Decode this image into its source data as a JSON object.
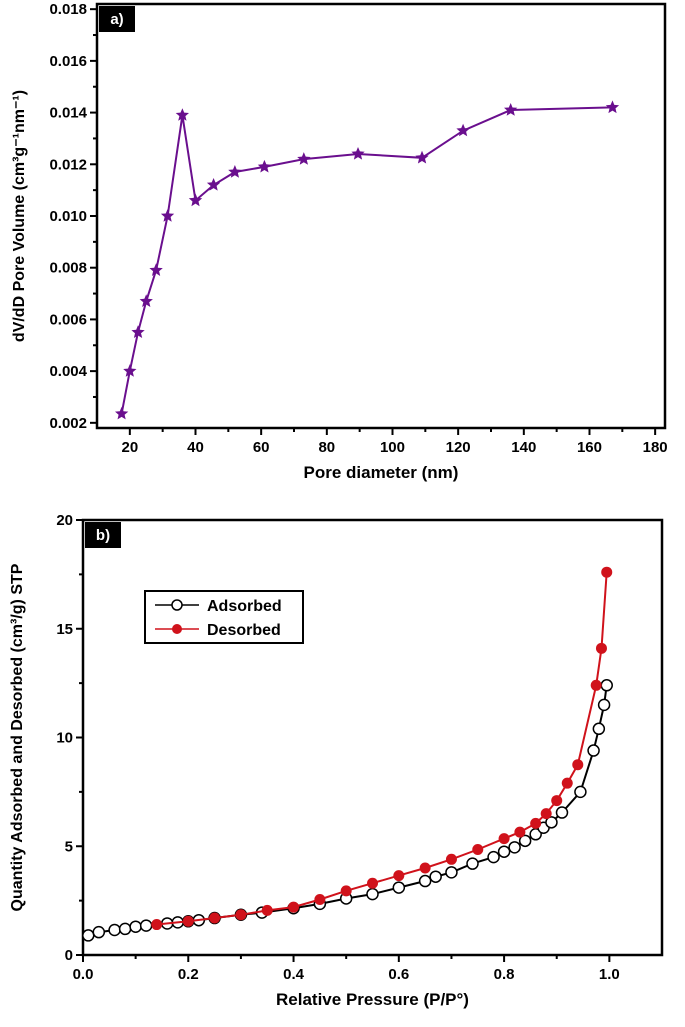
{
  "chart_data": [
    {
      "type": "line",
      "panel_label": "a)",
      "xlabel": "Pore diameter (nm)",
      "ylabel": "dV/dD Pore Volume (cm³g⁻¹nm⁻¹)",
      "xlim": [
        10,
        183
      ],
      "ylim": [
        0.0018,
        0.0182
      ],
      "xticks": [
        20,
        40,
        60,
        80,
        100,
        120,
        140,
        160,
        180
      ],
      "yticks": [
        "0.002",
        "0.004",
        "0.006",
        "0.008",
        "0.010",
        "0.012",
        "0.014",
        "0.016",
        "0.018"
      ],
      "grid": false,
      "series": [
        {
          "color": "#6a0f8e",
          "marker": "star",
          "x": [
            17.5,
            20,
            22.5,
            25,
            28,
            31.5,
            36,
            40,
            45.5,
            52,
            61,
            73,
            89.5,
            109,
            121.5,
            136,
            167
          ],
          "y": [
            0.00235,
            0.004,
            0.0055,
            0.0067,
            0.0079,
            0.01,
            0.0139,
            0.0106,
            0.0112,
            0.0117,
            0.0119,
            0.0122,
            0.0124,
            0.01225,
            0.0133,
            0.0141,
            0.0142
          ]
        }
      ]
    },
    {
      "type": "line",
      "panel_label": "b)",
      "xlabel": "Relative Pressure (P/P°)",
      "ylabel": "Quantity Adsorbed and Desorbed (cm³/g) STP",
      "xlim": [
        0,
        1.1
      ],
      "ylim": [
        0,
        20
      ],
      "xticks": [
        "0.0",
        "0.2",
        "0.4",
        "0.6",
        "0.8",
        "1.0"
      ],
      "yticks": [
        "0",
        "5",
        "10",
        "15",
        "20"
      ],
      "grid": false,
      "legend": "top-left",
      "series": [
        {
          "name": "Adsorbed",
          "color": "#000000",
          "marker": "open-circle",
          "x": [
            0.01,
            0.03,
            0.06,
            0.08,
            0.1,
            0.12,
            0.16,
            0.18,
            0.2,
            0.22,
            0.25,
            0.3,
            0.34,
            0.4,
            0.45,
            0.5,
            0.55,
            0.6,
            0.65,
            0.67,
            0.7,
            0.74,
            0.78,
            0.8,
            0.82,
            0.84,
            0.86,
            0.875,
            0.89,
            0.91,
            0.945,
            0.97,
            0.98,
            0.99,
            0.995
          ],
          "y": [
            0.9,
            1.05,
            1.15,
            1.2,
            1.3,
            1.35,
            1.45,
            1.5,
            1.55,
            1.6,
            1.7,
            1.85,
            1.95,
            2.15,
            2.35,
            2.6,
            2.8,
            3.1,
            3.4,
            3.6,
            3.8,
            4.2,
            4.5,
            4.75,
            4.95,
            5.25,
            5.55,
            5.85,
            6.1,
            6.55,
            7.5,
            9.4,
            10.4,
            11.5,
            12.4
          ]
        },
        {
          "name": "Desorbed",
          "color": "#d0121b",
          "marker": "filled-circle",
          "x": [
            0.14,
            0.2,
            0.25,
            0.3,
            0.35,
            0.4,
            0.45,
            0.5,
            0.55,
            0.6,
            0.65,
            0.7,
            0.75,
            0.8,
            0.83,
            0.86,
            0.88,
            0.9,
            0.92,
            0.94,
            0.975,
            0.985,
            0.995
          ],
          "y": [
            1.4,
            1.55,
            1.7,
            1.85,
            2.05,
            2.2,
            2.55,
            2.95,
            3.3,
            3.65,
            4.0,
            4.4,
            4.85,
            5.35,
            5.65,
            6.05,
            6.5,
            7.1,
            7.9,
            8.75,
            12.4,
            14.1,
            17.6
          ]
        }
      ]
    }
  ]
}
